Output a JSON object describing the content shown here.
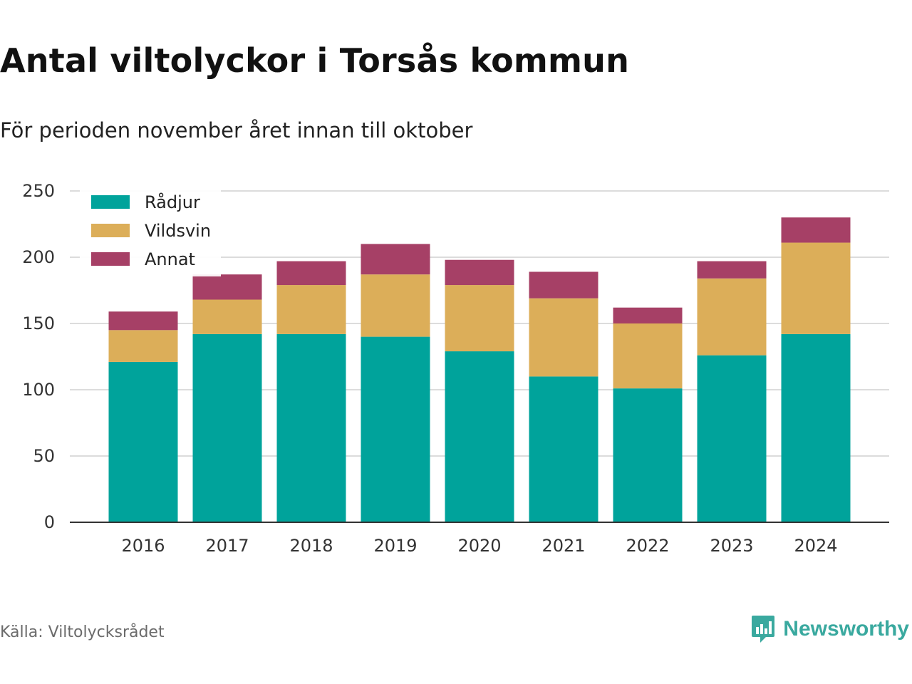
{
  "header": {
    "title": "Antal viltolyckor i Torsås kommun",
    "subtitle": "För perioden november året innan till oktober"
  },
  "footer": {
    "source": "Källa: Viltolycksrådet",
    "brand": "Newsworthy",
    "brand_icon": "chart-bubble-icon"
  },
  "colors": {
    "Rådjur": "#00a39b",
    "Vildsvin": "#dcae59",
    "Annat": "#a64066",
    "grid": "#dcdcdc",
    "axis": "#333333"
  },
  "chart_data": {
    "type": "bar",
    "stacked": true,
    "title": "Antal viltolyckor i Torsås kommun",
    "subtitle": "För perioden november året innan till oktober",
    "categories": [
      "2016",
      "2017",
      "2018",
      "2019",
      "2020",
      "2021",
      "2022",
      "2023",
      "2024"
    ],
    "series": [
      {
        "name": "Rådjur",
        "values": [
          121,
          142,
          142,
          140,
          129,
          110,
          101,
          126,
          142
        ]
      },
      {
        "name": "Vildsvin",
        "values": [
          24,
          26,
          37,
          47,
          50,
          59,
          49,
          58,
          69
        ]
      },
      {
        "name": "Annat",
        "values": [
          14,
          19,
          18,
          23,
          19,
          20,
          12,
          13,
          19
        ]
      }
    ],
    "ylim": [
      0,
      250
    ],
    "yticks": [
      0,
      50,
      100,
      150,
      200,
      250
    ],
    "grid": true,
    "legend": "top-left"
  }
}
